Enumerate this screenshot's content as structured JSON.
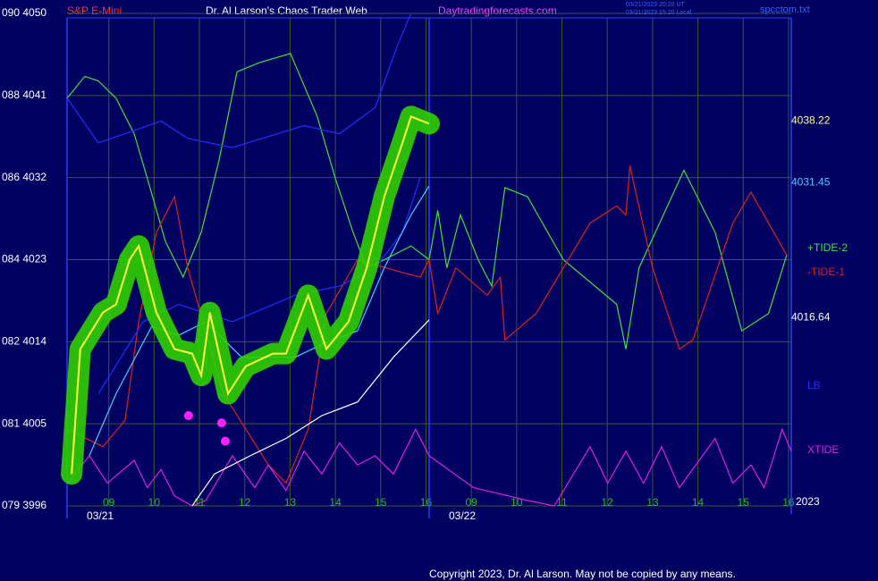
{
  "chart_data": {
    "type": "line",
    "title": "Dr. Al Larson's Chaos Trader Web",
    "instrument": "S&P E-Mini",
    "site": "Daytradingforecasts.com",
    "timestamps": [
      "03/21/2023 20:20 UT",
      "03/21/2023 15:20 Local"
    ],
    "file": "spcctom.txt",
    "copyright": "Copyright 2023, Dr. Al Larson. May not be copied by any means.",
    "year": "2023",
    "dates": [
      {
        "value": 0.08,
        "label": "03/21"
      },
      {
        "value": 8.07,
        "label": "03/22"
      }
    ],
    "xlim": [
      0,
      16.1
    ],
    "xticks": [
      {
        "value": 1,
        "label": "09"
      },
      {
        "value": 2,
        "label": "10"
      },
      {
        "value": 3,
        "label": "11"
      },
      {
        "value": 4,
        "label": "12"
      },
      {
        "value": 5,
        "label": "13"
      },
      {
        "value": 6,
        "label": "14"
      },
      {
        "value": 7,
        "label": "15"
      },
      {
        "value": 8,
        "label": "16"
      },
      {
        "value": 9,
        "label": "09"
      },
      {
        "value": 10,
        "label": "10"
      },
      {
        "value": 11,
        "label": "11"
      },
      {
        "value": 12,
        "label": "12"
      },
      {
        "value": 13,
        "label": "13"
      },
      {
        "value": 14,
        "label": "14"
      },
      {
        "value": 15,
        "label": "15"
      },
      {
        "value": 16,
        "label": "16"
      }
    ],
    "ylim": [
      3996,
      4050
    ],
    "yticks": [
      {
        "value": 4050,
        "label": "090 4050"
      },
      {
        "value": 4041,
        "label": "088 4041"
      },
      {
        "value": 4032,
        "label": "086 4032"
      },
      {
        "value": 4023,
        "label": "084 4023"
      },
      {
        "value": 4014,
        "label": "082 4014"
      },
      {
        "value": 4005,
        "label": "081 4005"
      },
      {
        "value": 3996,
        "label": "079 3996"
      }
    ],
    "grid": true,
    "right_labels": [
      {
        "value": 4038.22,
        "color": "#ffff80"
      },
      {
        "value": 4031.45,
        "color": "#40d0ff"
      },
      {
        "value": 4016.64,
        "color": "#ffffff"
      }
    ],
    "series": [
      {
        "name": "+TIDE-2",
        "color": "#40e040",
        "x": [
          0.08,
          0.47,
          0.77,
          1.16,
          1.56,
          1.85,
          2.25,
          2.64,
          3.04,
          3.43,
          3.83,
          4.32,
          5.01,
          5.6,
          6.0,
          6.39,
          6.69,
          7.08,
          7.67,
          8.07,
          8.26,
          8.46,
          8.76,
          9.15,
          9.45,
          9.74,
          10.24,
          11.03,
          12.21,
          12.41,
          12.7,
          13.69,
          14.38,
          14.97,
          15.56,
          15.96
        ],
        "values": [
          4040.7,
          4043.1,
          4042.6,
          4040.7,
          4036.8,
          4031.9,
          4025.0,
          4021.1,
          4026.0,
          4033.8,
          4043.6,
          4044.6,
          4045.6,
          4038.7,
          4031.9,
          4026.0,
          4022.1,
          4023.0,
          4024.5,
          4023.0,
          4028.4,
          4022.1,
          4027.9,
          4023.0,
          4020.1,
          4030.9,
          4029.9,
          4023.0,
          4018.1,
          4013.2,
          4022.1,
          4032.8,
          4026.0,
          4015.2,
          4017.1,
          4023.5
        ]
      },
      {
        "name": "-TIDE-1",
        "color": "#e02020",
        "x": [
          0.08,
          0.87,
          1.36,
          1.66,
          2.05,
          2.45,
          2.74,
          3.53,
          4.52,
          4.91,
          5.4,
          5.8,
          6.49,
          7.48,
          7.87,
          8.07,
          8.26,
          8.66,
          9.35,
          9.64,
          9.74,
          10.43,
          11.62,
          12.21,
          12.41,
          12.5,
          13.0,
          13.59,
          13.89,
          14.77,
          15.17,
          15.96
        ],
        "values": [
          4004.4,
          4002.5,
          4005.4,
          4016.2,
          4026.0,
          4029.9,
          4022.1,
          4008.3,
          4000.5,
          3998.5,
          4004.4,
          4017.1,
          4023.0,
          4021.6,
          4021.1,
          4023.0,
          4017.1,
          4022.1,
          4019.1,
          4021.1,
          4014.2,
          4017.1,
          4027.0,
          4028.9,
          4027.9,
          4033.3,
          4022.1,
          4013.2,
          4014.2,
          4027.0,
          4030.4,
          4023.5
        ]
      },
      {
        "name": "XTIDE",
        "color": "#e020e0",
        "x": [
          0.08,
          0.57,
          0.97,
          1.56,
          1.85,
          2.15,
          2.45,
          2.84,
          3.14,
          3.73,
          4.22,
          4.52,
          4.91,
          5.31,
          5.7,
          6.09,
          6.49,
          6.88,
          7.28,
          7.77,
          8.07,
          9.05,
          10.24,
          10.83,
          11.62,
          12.01,
          12.41,
          12.8,
          13.2,
          13.59,
          14.38,
          14.77,
          15.17,
          15.46,
          15.86,
          16.06
        ],
        "values": [
          3998.5,
          4001.5,
          3998.5,
          4001.0,
          3998.0,
          4000.0,
          3997.1,
          3996.0,
          3996.6,
          4001.5,
          3998.0,
          4000.5,
          3997.7,
          4002.0,
          3999.5,
          4002.9,
          4000.5,
          4001.5,
          3999.5,
          4004.4,
          4001.5,
          3998.0,
          3996.6,
          3996.0,
          4002.5,
          3998.5,
          4002.0,
          3998.5,
          4002.5,
          3998.0,
          4003.4,
          3998.5,
          4000.5,
          3998.0,
          4004.4,
          4002.0
        ]
      },
      {
        "name": "LB",
        "color": "#2030ff",
        "x": [
          0.77,
          1.76,
          2.54,
          3.73,
          5.11,
          6.09,
          6.88,
          7.48,
          7.87
        ],
        "values": [
          4008.3,
          4016.2,
          4018.1,
          4016.2,
          4019.1,
          4020.1,
          4022.1,
          4026.0,
          4032.0
        ]
      },
      {
        "color": "#2030ff",
        "x": [
          0.08,
          0.77,
          2.15,
          2.74,
          3.73,
          5.31,
          6.09,
          6.88,
          7.38,
          7.67
        ],
        "values": [
          4040.7,
          4035.8,
          4038.2,
          4036.3,
          4035.3,
          4037.7,
          4036.8,
          4039.7,
          4046.6,
          4050.0
        ]
      },
      {
        "color": "#ffffff",
        "x": [
          2.84,
          3.33,
          4.12,
          4.91,
          5.7,
          6.49,
          7.28,
          8.07
        ],
        "values": [
          3996.0,
          3999.5,
          4001.5,
          4003.4,
          4005.9,
          4007.4,
          4012.3,
          4016.4
        ]
      },
      {
        "color": "#40d0ff",
        "x": [
          0.57,
          1.16,
          1.95,
          2.54,
          3.14,
          3.93,
          5.11,
          5.7,
          6.49,
          7.08,
          7.67,
          8.07
        ],
        "values": [
          4001.5,
          4008.3,
          4015.7,
          4014.7,
          4016.2,
          4012.3,
          4012.3,
          4013.7,
          4015.2,
          4022.1,
          4027.9,
          4031.1
        ]
      },
      {
        "color": "#ffff40",
        "halo": "#30d000",
        "x": [
          0.18,
          0.37,
          0.87,
          1.16,
          1.46,
          1.66,
          2.05,
          2.45,
          2.84,
          3.04,
          3.23,
          3.63,
          4.02,
          4.62,
          4.91,
          5.4,
          5.8,
          6.29,
          6.69,
          7.08,
          7.48,
          7.67,
          8.07
        ],
        "values": [
          3999.5,
          4013.2,
          4017.2,
          4018.1,
          4023.0,
          4024.5,
          4017.2,
          4013.2,
          4012.7,
          4010.3,
          4017.2,
          4008.3,
          4011.3,
          4012.7,
          4012.7,
          4019.1,
          4013.2,
          4016.2,
          4022.1,
          4029.9,
          4035.8,
          4038.7,
          4037.9
        ]
      },
      {
        "color": "#ff20ff",
        "style": "dots",
        "x": [
          2.76,
          3.49,
          3.57
        ],
        "values": [
          4005.9,
          4005.1,
          4003.1
        ]
      }
    ]
  }
}
